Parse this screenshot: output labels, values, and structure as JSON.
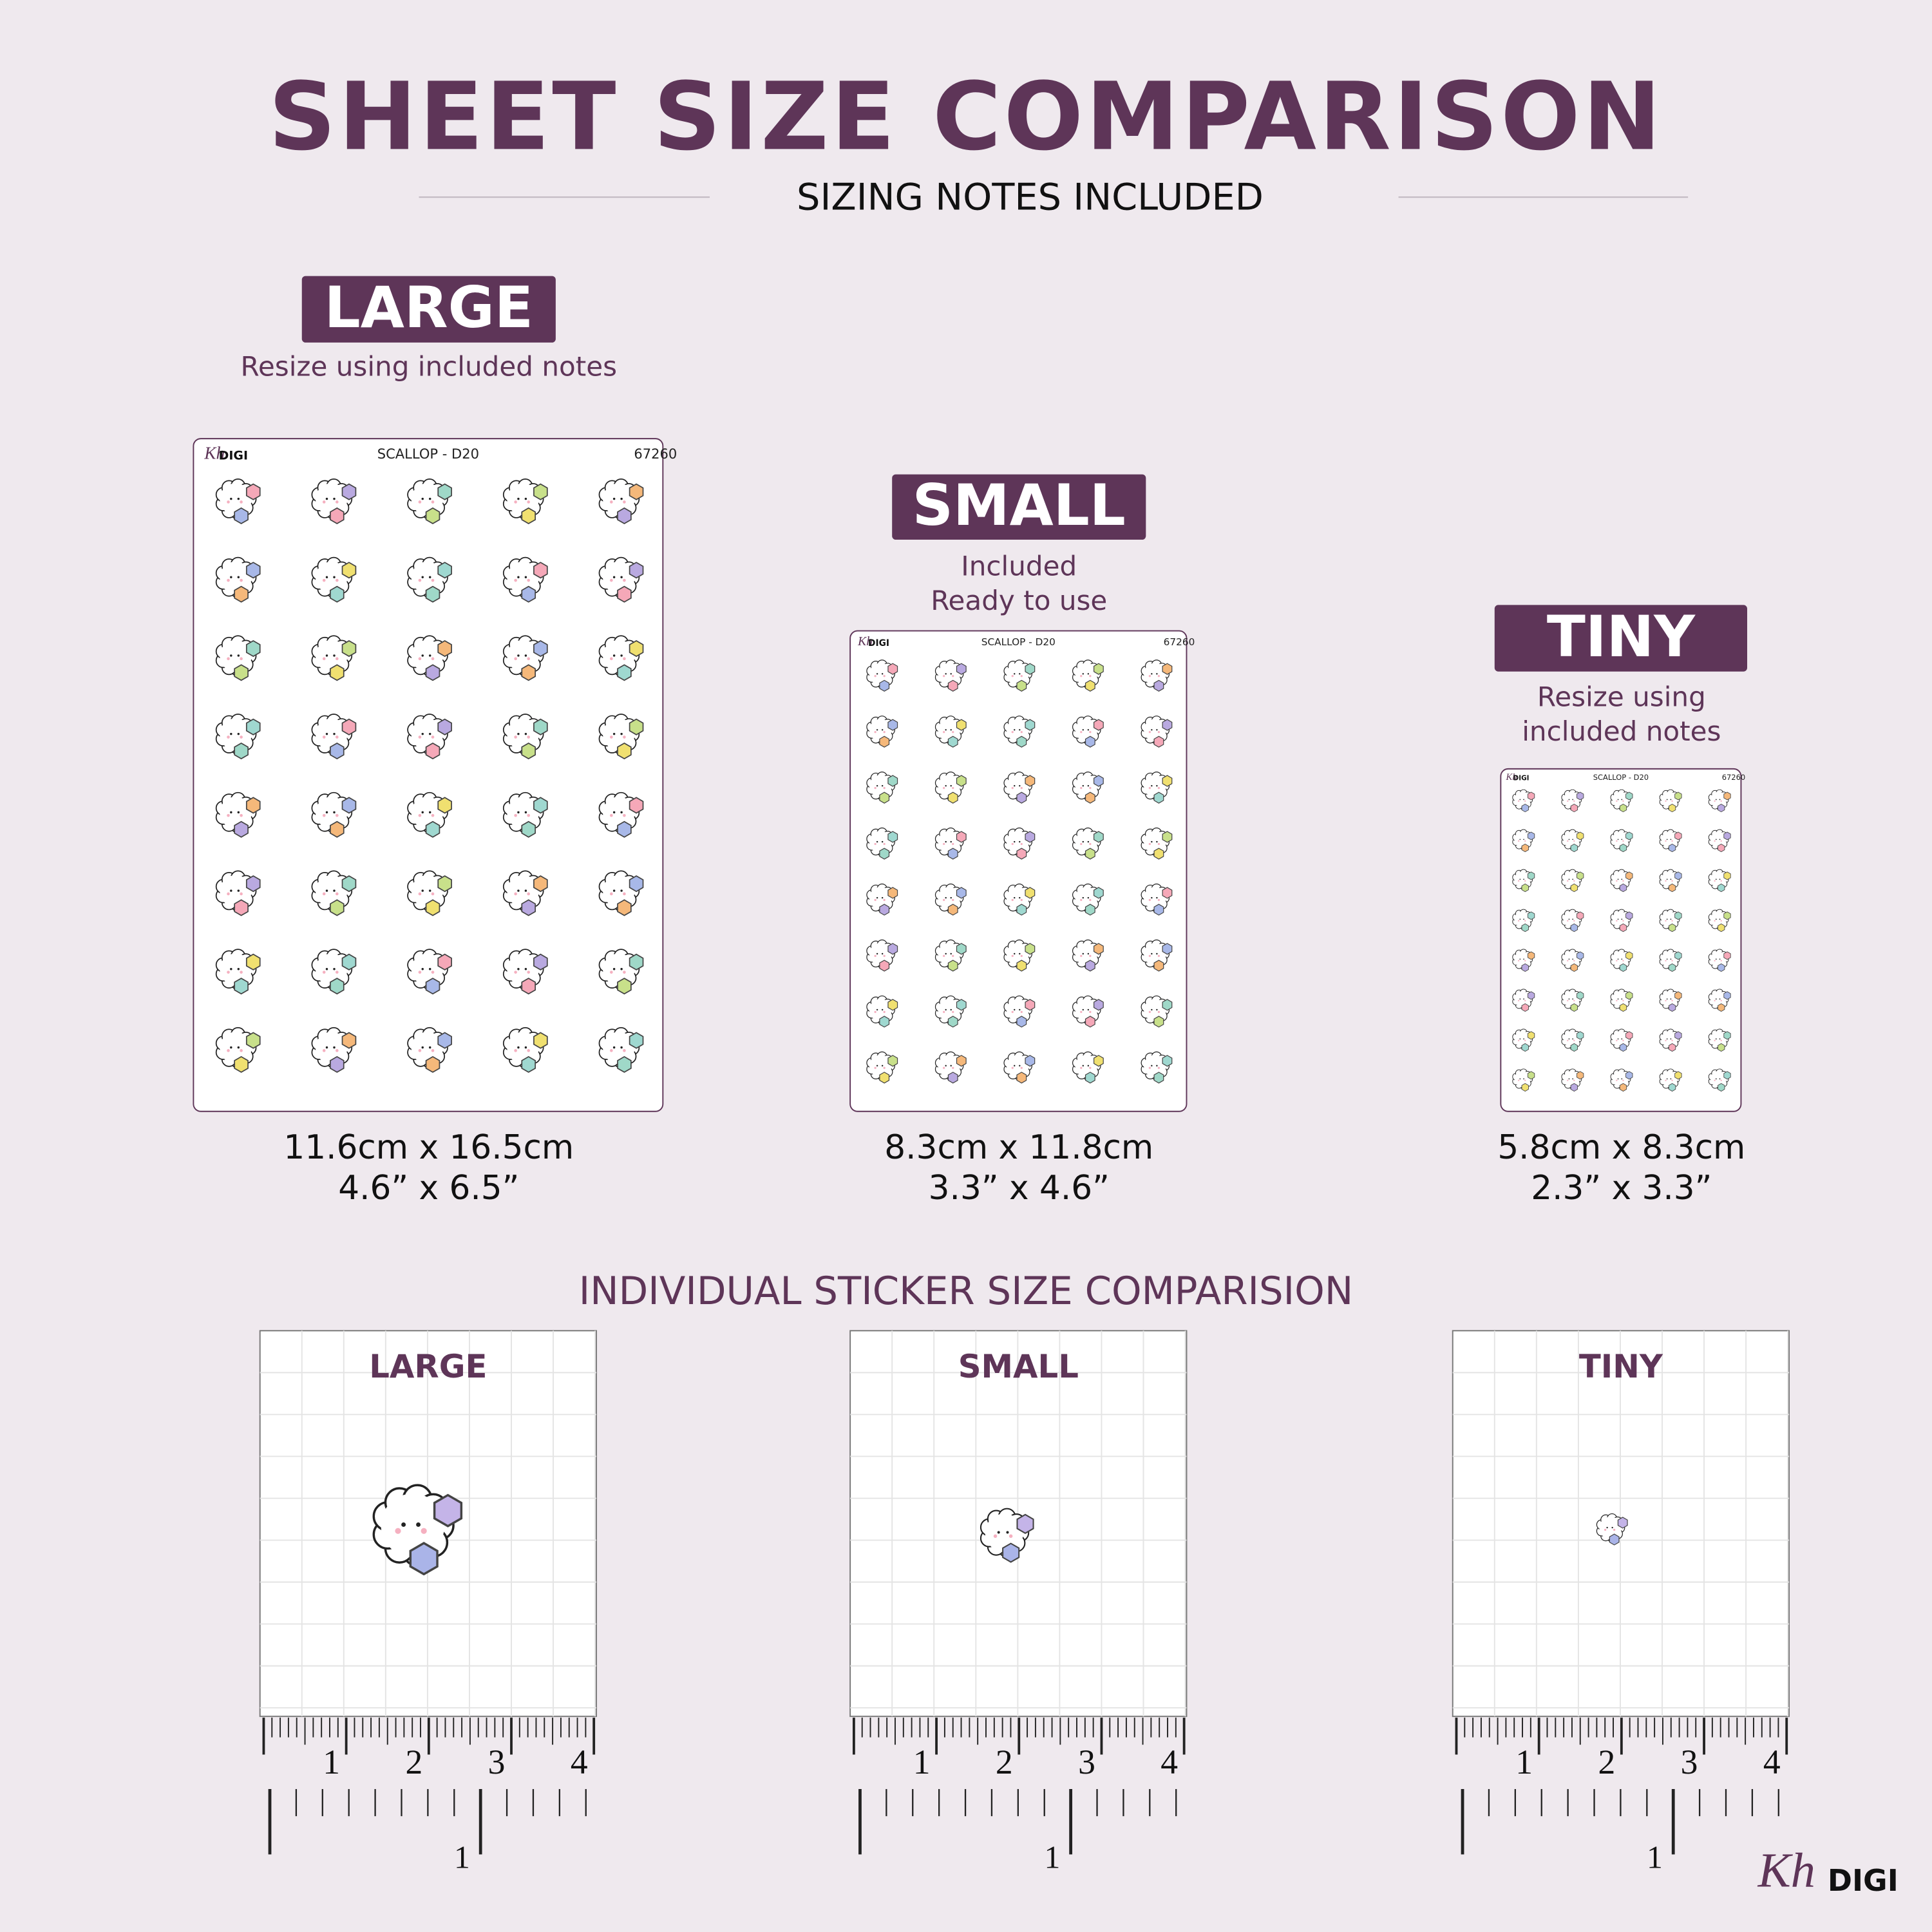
{
  "header": {
    "title": "SHEET SIZE COMPARISON",
    "subtitle": "SIZING NOTES INCLUDED"
  },
  "sheets": [
    {
      "badge": "LARGE",
      "note": [
        "Resize using included notes"
      ],
      "sheet_title": "SCALLOP - D20",
      "sheet_code": "67260",
      "brand_mark": "Kh",
      "brand": "DIGI",
      "size_cm": "11.6cm x 16.5cm",
      "size_in": "4.6” x 6.5”"
    },
    {
      "badge": "SMALL",
      "note": [
        "Included",
        "Ready to use"
      ],
      "sheet_title": "SCALLOP - D20",
      "sheet_code": "67260",
      "brand_mark": "Kh",
      "brand": "DIGI",
      "size_cm": "8.3cm x 11.8cm",
      "size_in": "3.3” x 4.6”"
    },
    {
      "badge": "TINY",
      "note": [
        "Resize using",
        "included notes"
      ],
      "sheet_title": "SCALLOP - D20",
      "sheet_code": "67260",
      "brand_mark": "Kh",
      "brand": "DIGI",
      "size_cm": "5.8cm x 8.3cm",
      "size_in": "2.3” x 3.3”"
    }
  ],
  "comparison": {
    "title": "INDIVIDUAL STICKER SIZE COMPARISION",
    "panels": [
      {
        "label": "LARGE",
        "cm_ticks": [
          "1",
          "2",
          "3",
          "4"
        ],
        "inch_ticks": [
          "1"
        ]
      },
      {
        "label": "SMALL",
        "cm_ticks": [
          "1",
          "2",
          "3",
          "4"
        ],
        "inch_ticks": [
          "1"
        ]
      },
      {
        "label": "TINY",
        "cm_ticks": [
          "1",
          "2",
          "3",
          "4"
        ],
        "inch_ticks": [
          "1"
        ]
      }
    ]
  },
  "footer": {
    "brand_mark": "Kh",
    "brand": "DIGI"
  }
}
